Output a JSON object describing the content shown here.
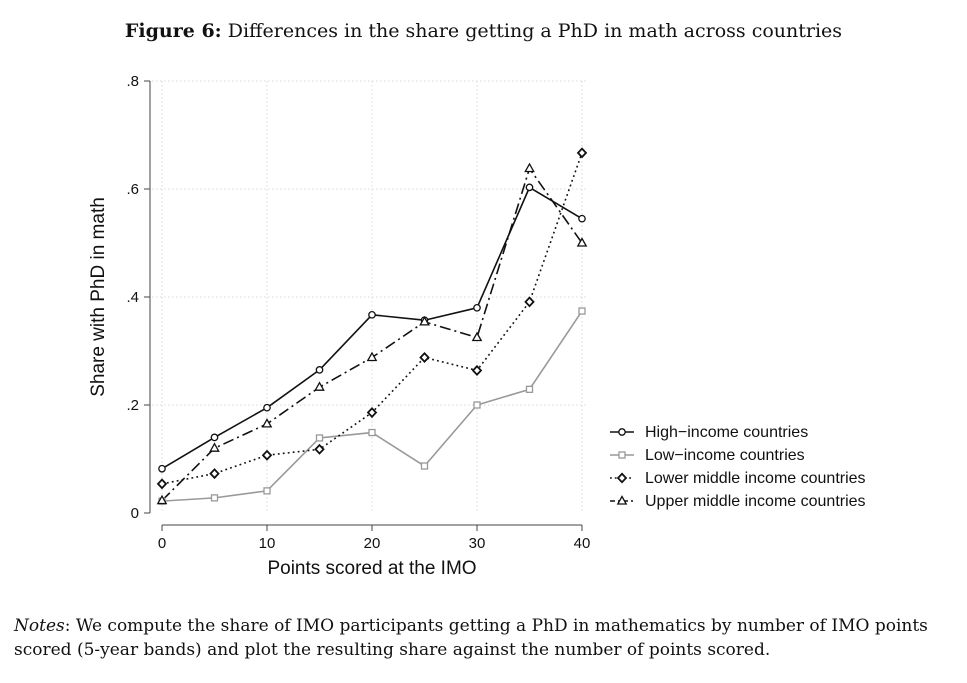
{
  "figure": {
    "label": "Figure 6:",
    "title": "Differences in the share getting a PhD in math across countries"
  },
  "notes": {
    "label": "Notes",
    "text": ": We compute the share of IMO participants getting a PhD in mathematics by number of IMO points scored (5-year bands) and plot the resulting share against the number of points scored."
  },
  "chart_data": {
    "type": "line",
    "xlabel": "Points scored at the IMO",
    "ylabel": "Share with PhD in math",
    "xlim": [
      0,
      40
    ],
    "ylim": [
      0,
      0.8
    ],
    "x_ticks": [
      0,
      10,
      20,
      30,
      40
    ],
    "x_tick_labels": [
      "0",
      "10",
      "20",
      "30",
      "40"
    ],
    "y_ticks": [
      0,
      0.2,
      0.4,
      0.6,
      0.8
    ],
    "y_tick_labels": [
      "0",
      ".2",
      ".4",
      ".6",
      ".8"
    ],
    "grid": true,
    "legend_position": "right",
    "x": [
      0,
      5,
      10,
      15,
      20,
      25,
      30,
      35,
      40
    ],
    "series": [
      {
        "name": "High−income countries",
        "marker": "circle",
        "line_style": "solid",
        "color": "#111111",
        "values": [
          0.082,
          0.14,
          0.195,
          0.265,
          0.367,
          0.357,
          0.38,
          0.603,
          0.545
        ]
      },
      {
        "name": "Low−income countries",
        "marker": "square",
        "line_style": "solid",
        "color": "#999999",
        "values": [
          0.022,
          0.028,
          0.041,
          0.139,
          0.149,
          0.087,
          0.2,
          0.229,
          0.374
        ]
      },
      {
        "name": "Lower middle income countries",
        "marker": "diamond",
        "line_style": "dotted",
        "color": "#111111",
        "values": [
          0.054,
          0.073,
          0.107,
          0.118,
          0.186,
          0.288,
          0.264,
          0.391,
          0.667
        ]
      },
      {
        "name": "Upper middle income countries",
        "marker": "triangle",
        "line_style": "dashdot",
        "color": "#111111",
        "values": [
          0.023,
          0.12,
          0.165,
          0.233,
          0.288,
          0.354,
          0.325,
          0.638,
          0.5
        ]
      }
    ]
  }
}
